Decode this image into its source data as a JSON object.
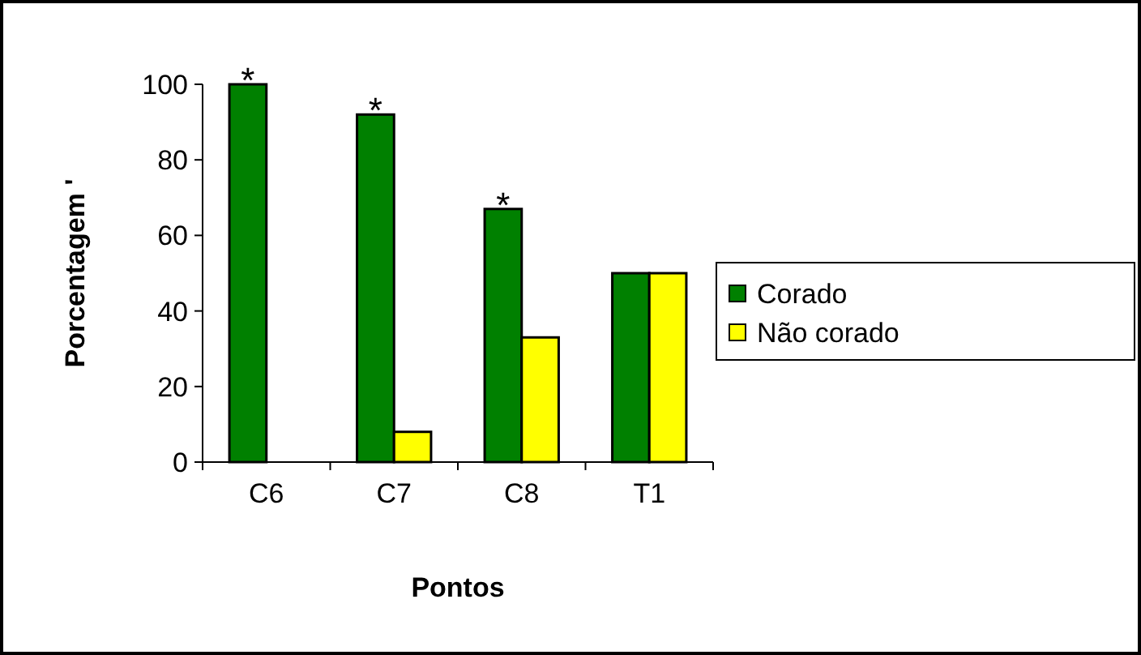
{
  "chart_data": {
    "type": "bar",
    "xlabel": "Pontos",
    "ylabel": "Porcentagem '",
    "categories": [
      "C6",
      "C7",
      "C8",
      "T1"
    ],
    "series": [
      {
        "name": "Corado",
        "color": "#008000",
        "values": [
          100,
          92,
          67,
          50
        ]
      },
      {
        "name": "Não corado",
        "color": "#ffff00",
        "values": [
          0,
          8,
          33,
          50
        ]
      }
    ],
    "ylim": [
      0,
      100
    ],
    "yticks": [
      0,
      20,
      40,
      60,
      80,
      100
    ],
    "legend": "right",
    "annotations": [
      {
        "text": "*",
        "x": "C6",
        "y": 100
      },
      {
        "text": "*",
        "x": "C7",
        "y": 92
      },
      {
        "text": "*",
        "x": "C8",
        "y": 67
      }
    ]
  }
}
